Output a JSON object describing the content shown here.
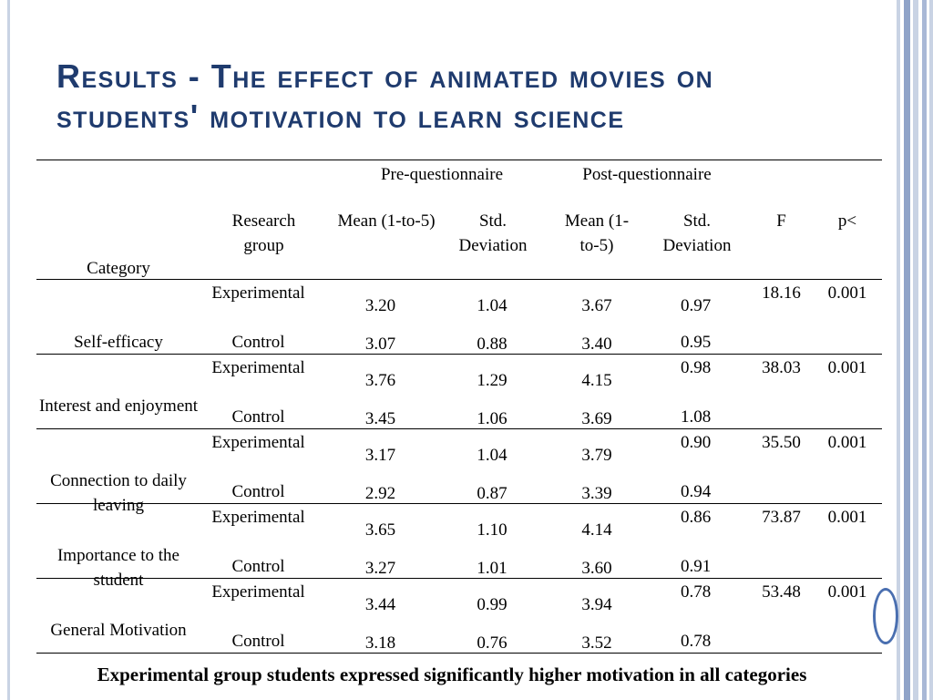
{
  "slide": {
    "title_line1": "Results - The effect of animated movies on",
    "title_line2": "students' motivation to learn science",
    "footer": "Experimental group students expressed significantly higher motivation in all categories"
  },
  "table": {
    "header": {
      "pre": "Pre-questionnaire",
      "post": "Post-questionnaire",
      "category": "Category",
      "research_group": "Research group",
      "pre_mean": "Mean    (1-to-5)",
      "pre_std": "Std. Deviation",
      "post_mean": "Mean (1-to-5)",
      "post_std": "Std. Deviation",
      "f": "F",
      "p": "p<"
    },
    "rows": [
      {
        "category": "Self-efficacy",
        "exp": {
          "group": "Experimental",
          "pre_mean": "3.20",
          "pre_std": "1.04",
          "post_mean": "3.67",
          "post_std": "0.97"
        },
        "ctl": {
          "group": "Control",
          "pre_mean": "3.07",
          "pre_std": "0.88",
          "post_mean": "3.40",
          "post_std": "0.95"
        },
        "f": "18.16",
        "p": "0.001"
      },
      {
        "category": "Interest and enjoyment",
        "exp": {
          "group": "Experimental",
          "pre_mean": "3.76",
          "pre_std": "1.29",
          "post_mean": "4.15",
          "post_std": "0.98"
        },
        "ctl": {
          "group": "Control",
          "pre_mean": "3.45",
          "pre_std": "1.06",
          "post_mean": "3.69",
          "post_std": "1.08"
        },
        "f": "38.03",
        "p": "0.001"
      },
      {
        "category": "Connection to daily leaving",
        "exp": {
          "group": "Experimental",
          "pre_mean": "3.17",
          "pre_std": "1.04",
          "post_mean": "3.79",
          "post_std": "0.90"
        },
        "ctl": {
          "group": "Control",
          "pre_mean": "2.92",
          "pre_std": "0.87",
          "post_mean": "3.39",
          "post_std": "0.94"
        },
        "f": "35.50",
        "p": "0.001"
      },
      {
        "category": "Importance to the student",
        "exp": {
          "group": "Experimental",
          "pre_mean": "3.65",
          "pre_std": "1.10",
          "post_mean": "4.14",
          "post_std": "0.86"
        },
        "ctl": {
          "group": "Control",
          "pre_mean": "3.27",
          "pre_std": "1.01",
          "post_mean": "3.60",
          "post_std": "0.91"
        },
        "f": "73.87",
        "p": "0.001"
      },
      {
        "category": "General Motivation",
        "exp": {
          "group": "Experimental",
          "pre_mean": "3.44",
          "pre_std": "0.99",
          "post_mean": "3.94",
          "post_std": "0.78"
        },
        "ctl": {
          "group": "Control",
          "pre_mean": "3.18",
          "pre_std": "0.76",
          "post_mean": "3.52",
          "post_std": "0.78"
        },
        "f": "53.48",
        "p": "0.001"
      }
    ]
  },
  "colors": {
    "title": "#1f3b6e",
    "accent": "#4a6fb0",
    "stripe_light": "#c9d3e4"
  }
}
